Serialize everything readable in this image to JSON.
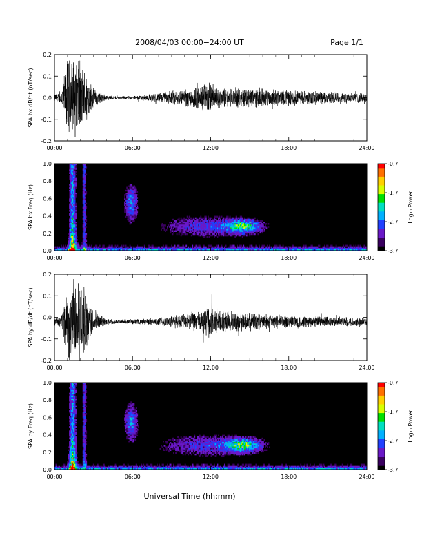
{
  "header": {
    "title": "2008/04/03  00:00−24:00 UT",
    "page": "Page 1/1"
  },
  "footer": {
    "xlabel": "Universal Time (hh:mm)"
  },
  "colorbar": {
    "label": "Log₁₀ Power",
    "ticks": [
      "-0.7",
      "-1.7",
      "-2.7",
      "-3.7"
    ],
    "colors": [
      "#000000",
      "#3a0060",
      "#6a18c8",
      "#2040ff",
      "#00b0ff",
      "#00e0c0",
      "#00e000",
      "#d8ff00",
      "#ffd000",
      "#ff7000",
      "#ff0000"
    ]
  },
  "chart_data": [
    {
      "type": "line",
      "ylabel": "SPA bx dB/dt (nT/sec)",
      "xlim": [
        "00:00",
        "24:00"
      ],
      "ylim": [
        -0.2,
        0.2
      ],
      "x_ticks": [
        "00:00",
        "06:00",
        "12:00",
        "18:00",
        "24:00"
      ],
      "y_ticks": [
        "0.2",
        "0.1",
        "0.0",
        "-0.1",
        "-0.2"
      ],
      "envelope": {
        "hours": [
          0,
          0.5,
          1.0,
          1.4,
          1.8,
          2.3,
          3.0,
          4.0,
          5.0,
          6.0,
          7.0,
          8.0,
          9.0,
          10.0,
          11.0,
          12.0,
          12.5,
          13.0,
          14.0,
          15.0,
          16.0,
          17.0,
          18.0,
          20.0,
          22.0,
          24.0
        ],
        "amplitude": [
          0.02,
          0.03,
          0.2,
          0.2,
          0.2,
          0.15,
          0.05,
          0.012,
          0.008,
          0.01,
          0.015,
          0.025,
          0.035,
          0.045,
          0.06,
          0.08,
          0.06,
          0.05,
          0.05,
          0.05,
          0.045,
          0.04,
          0.04,
          0.035,
          0.03,
          0.025
        ]
      }
    },
    {
      "type": "heatmap",
      "ylabel": "SPA bx Freq (Hz)",
      "xlim": [
        "00:00",
        "24:00"
      ],
      "ylim": [
        0.0,
        1.0
      ],
      "x_ticks": [
        "00:00",
        "06:00",
        "12:00",
        "18:00",
        "24:00"
      ],
      "y_ticks": [
        "1.0",
        "0.8",
        "0.6",
        "0.4",
        "0.2",
        "0.0"
      ],
      "power_range": [
        -3.7,
        -0.7
      ]
    },
    {
      "type": "line",
      "ylabel": "SPA by dB/dt (nT/sec)",
      "xlim": [
        "00:00",
        "24:00"
      ],
      "ylim": [
        -0.2,
        0.2
      ],
      "x_ticks": [
        "00:00",
        "06:00",
        "12:00",
        "18:00",
        "24:00"
      ],
      "y_ticks": [
        "0.2",
        "0.1",
        "0.0",
        "-0.1",
        "-0.2"
      ],
      "envelope": {
        "hours": [
          0,
          0.5,
          1.0,
          1.4,
          1.8,
          2.3,
          3.0,
          4.0,
          5.0,
          6.0,
          7.0,
          8.0,
          9.0,
          10.0,
          11.0,
          12.0,
          12.5,
          13.0,
          14.0,
          15.0,
          16.0,
          17.0,
          18.0,
          20.0,
          22.0,
          24.0
        ],
        "amplitude": [
          0.02,
          0.03,
          0.2,
          0.2,
          0.2,
          0.16,
          0.06,
          0.015,
          0.01,
          0.012,
          0.015,
          0.02,
          0.03,
          0.04,
          0.05,
          0.08,
          0.07,
          0.06,
          0.05,
          0.045,
          0.04,
          0.035,
          0.035,
          0.03,
          0.025,
          0.02
        ]
      }
    },
    {
      "type": "heatmap",
      "ylabel": "SPA by Freq (Hz)",
      "xlim": [
        "00:00",
        "24:00"
      ],
      "ylim": [
        0.0,
        1.0
      ],
      "x_ticks": [
        "00:00",
        "06:00",
        "12:00",
        "18:00",
        "24:00"
      ],
      "y_ticks": [
        "1.0",
        "0.8",
        "0.6",
        "0.4",
        "0.2",
        "0.0"
      ],
      "power_range": [
        -3.7,
        -0.7
      ]
    }
  ]
}
